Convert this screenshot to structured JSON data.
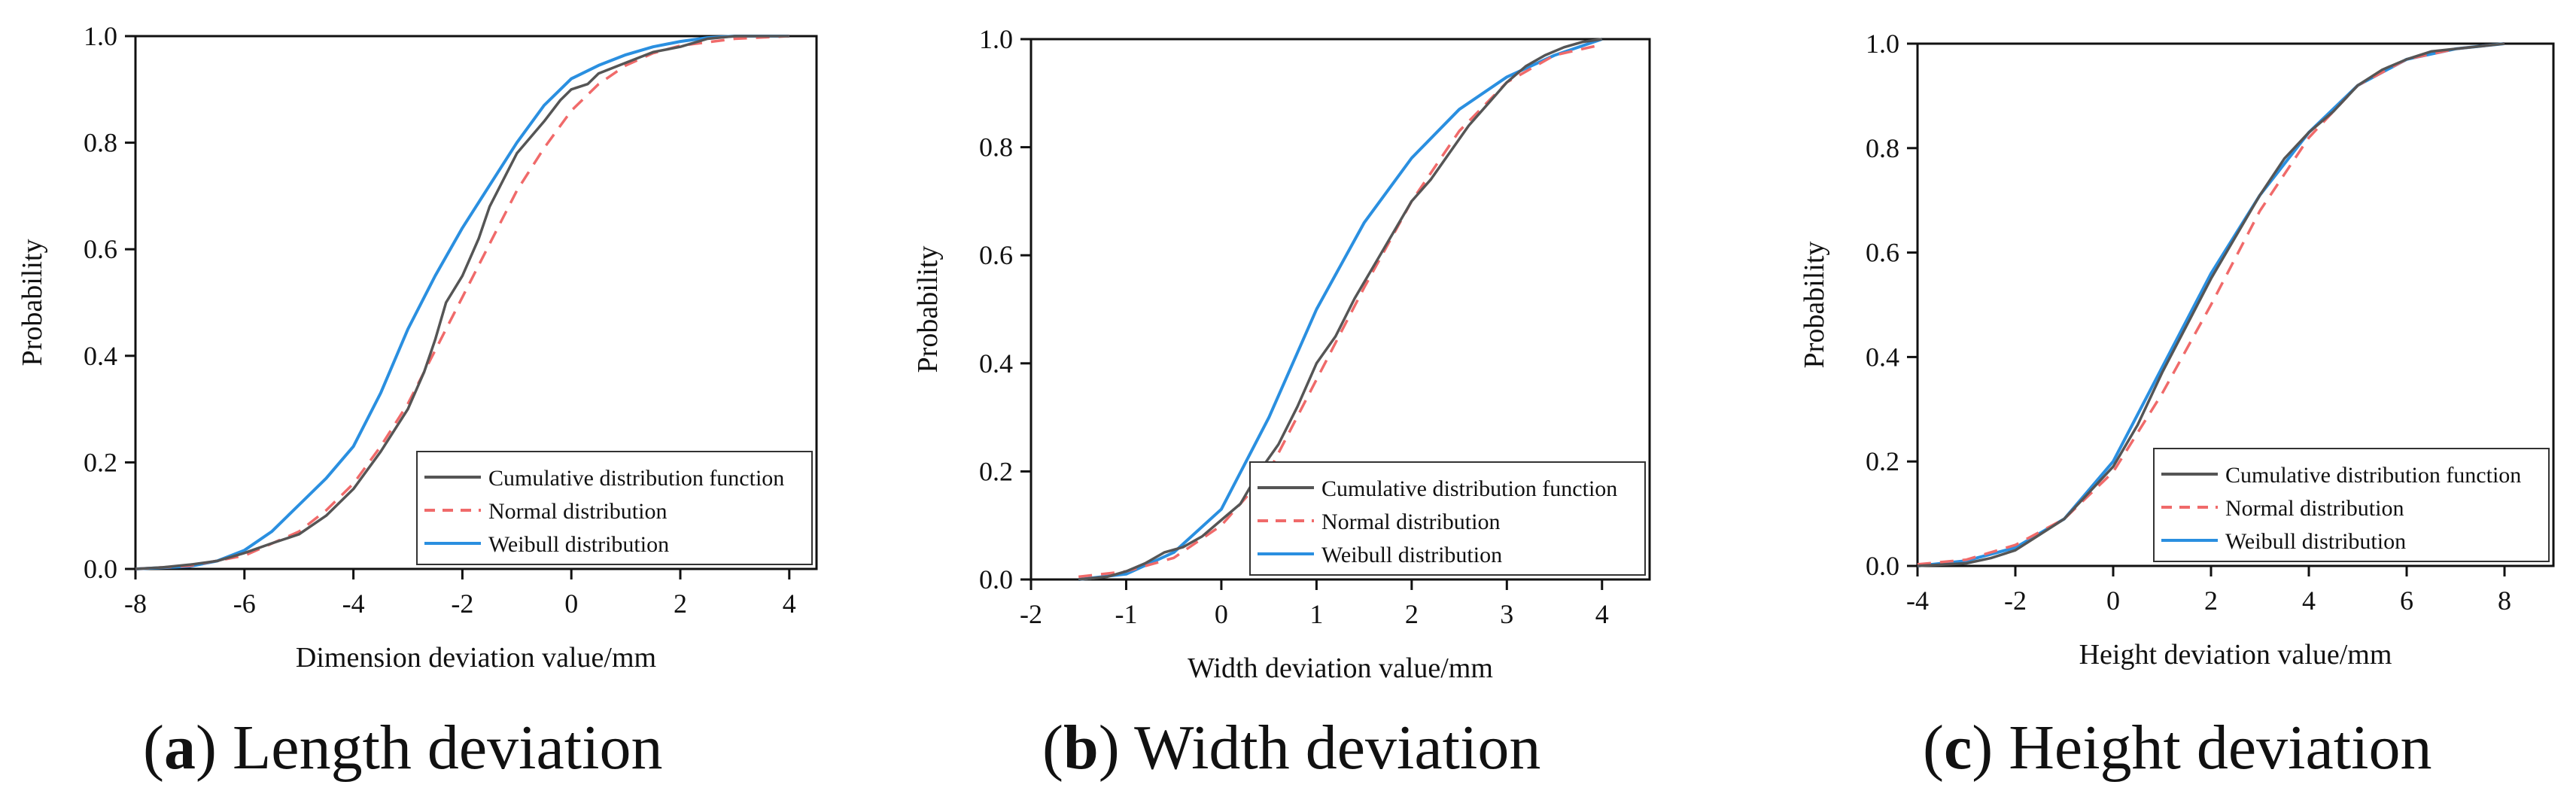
{
  "colors": {
    "cdf": "#555555",
    "normal": "#f06a6a",
    "weibull": "#2a8fe0",
    "axis": "#111111"
  },
  "chart_data": [
    {
      "id": "a",
      "type": "line",
      "xlabel": "Dimension deviation value/mm",
      "ylabel": "Probability",
      "xlim": [
        -8,
        4.5
      ],
      "ylim": [
        0,
        1
      ],
      "xticks": [
        -8,
        -6,
        -4,
        -2,
        0,
        2,
        4
      ],
      "yticks": [
        0.0,
        0.2,
        0.4,
        0.6,
        0.8,
        1.0
      ],
      "caption_letter": "a",
      "caption_text": " Length deviation",
      "legend_position": "lower-right",
      "series": [
        {
          "name": "Cumulative distribution function",
          "key": "cdf",
          "dash": false,
          "points": [
            [
              -8,
              0
            ],
            [
              -7.5,
              0.003
            ],
            [
              -7,
              0.008
            ],
            [
              -6.5,
              0.015
            ],
            [
              -6,
              0.03
            ],
            [
              -5.5,
              0.048
            ],
            [
              -5,
              0.065
            ],
            [
              -4.5,
              0.1
            ],
            [
              -4,
              0.15
            ],
            [
              -3.5,
              0.22
            ],
            [
              -3,
              0.3
            ],
            [
              -2.7,
              0.37
            ],
            [
              -2.5,
              0.43
            ],
            [
              -2.3,
              0.5
            ],
            [
              -2,
              0.55
            ],
            [
              -1.7,
              0.62
            ],
            [
              -1.5,
              0.68
            ],
            [
              -1.2,
              0.74
            ],
            [
              -1,
              0.78
            ],
            [
              -0.5,
              0.84
            ],
            [
              -0.2,
              0.88
            ],
            [
              0,
              0.9
            ],
            [
              0.3,
              0.91
            ],
            [
              0.5,
              0.93
            ],
            [
              1,
              0.95
            ],
            [
              1.5,
              0.97
            ],
            [
              2,
              0.98
            ],
            [
              2.5,
              0.995
            ],
            [
              3,
              1.0
            ],
            [
              4,
              1.0
            ]
          ]
        },
        {
          "name": "Normal distribution",
          "key": "normal",
          "dash": true,
          "points": [
            [
              -8,
              0.0
            ],
            [
              -7,
              0.006
            ],
            [
              -6,
              0.025
            ],
            [
              -5,
              0.07
            ],
            [
              -4.5,
              0.11
            ],
            [
              -4,
              0.16
            ],
            [
              -3.5,
              0.23
            ],
            [
              -3,
              0.31
            ],
            [
              -2.5,
              0.41
            ],
            [
              -2,
              0.51
            ],
            [
              -1.5,
              0.61
            ],
            [
              -1,
              0.71
            ],
            [
              -0.5,
              0.79
            ],
            [
              0,
              0.86
            ],
            [
              0.5,
              0.91
            ],
            [
              1,
              0.945
            ],
            [
              1.5,
              0.968
            ],
            [
              2,
              0.982
            ],
            [
              3,
              0.995
            ],
            [
              4,
              1.0
            ]
          ]
        },
        {
          "name": "Weibull distribution",
          "key": "weibull",
          "dash": false,
          "points": [
            [
              -8,
              0.0
            ],
            [
              -7,
              0.005
            ],
            [
              -6.5,
              0.015
            ],
            [
              -6,
              0.035
            ],
            [
              -5.5,
              0.07
            ],
            [
              -5,
              0.12
            ],
            [
              -4.5,
              0.17
            ],
            [
              -4,
              0.23
            ],
            [
              -3.5,
              0.33
            ],
            [
              -3,
              0.45
            ],
            [
              -2.5,
              0.55
            ],
            [
              -2,
              0.64
            ],
            [
              -1.5,
              0.72
            ],
            [
              -1,
              0.8
            ],
            [
              -0.5,
              0.87
            ],
            [
              0,
              0.92
            ],
            [
              0.5,
              0.945
            ],
            [
              1,
              0.965
            ],
            [
              1.5,
              0.98
            ],
            [
              2,
              0.99
            ],
            [
              2.5,
              0.997
            ],
            [
              3,
              1.0
            ],
            [
              4,
              1.0
            ]
          ]
        }
      ]
    },
    {
      "id": "b",
      "type": "line",
      "xlabel": "Width deviation value/mm",
      "ylabel": "Probability",
      "xlim": [
        -2,
        4.5
      ],
      "ylim": [
        0,
        1
      ],
      "xticks": [
        -2,
        -1,
        0,
        1,
        2,
        3,
        4
      ],
      "yticks": [
        0.0,
        0.2,
        0.4,
        0.6,
        0.8,
        1.0
      ],
      "caption_letter": "b",
      "caption_text": " Width deviation",
      "legend_position": "lower-right",
      "series": [
        {
          "name": "Cumulative distribution function",
          "key": "cdf",
          "dash": false,
          "points": [
            [
              -1.5,
              0
            ],
            [
              -1.2,
              0.005
            ],
            [
              -1,
              0.015
            ],
            [
              -0.8,
              0.03
            ],
            [
              -0.6,
              0.05
            ],
            [
              -0.4,
              0.06
            ],
            [
              -0.2,
              0.08
            ],
            [
              0,
              0.11
            ],
            [
              0.2,
              0.14
            ],
            [
              0.4,
              0.2
            ],
            [
              0.6,
              0.25
            ],
            [
              0.8,
              0.32
            ],
            [
              1,
              0.4
            ],
            [
              1.2,
              0.45
            ],
            [
              1.4,
              0.52
            ],
            [
              1.6,
              0.58
            ],
            [
              1.8,
              0.64
            ],
            [
              2,
              0.7
            ],
            [
              2.2,
              0.74
            ],
            [
              2.4,
              0.79
            ],
            [
              2.6,
              0.84
            ],
            [
              2.8,
              0.88
            ],
            [
              3,
              0.92
            ],
            [
              3.2,
              0.95
            ],
            [
              3.4,
              0.97
            ],
            [
              3.6,
              0.985
            ],
            [
              3.8,
              0.995
            ],
            [
              4,
              1.0
            ]
          ]
        },
        {
          "name": "Normal distribution",
          "key": "normal",
          "dash": true,
          "points": [
            [
              -1.5,
              0.005
            ],
            [
              -1,
              0.015
            ],
            [
              -0.5,
              0.04
            ],
            [
              0,
              0.1
            ],
            [
              0.5,
              0.2
            ],
            [
              1,
              0.37
            ],
            [
              1.5,
              0.54
            ],
            [
              2,
              0.7
            ],
            [
              2.5,
              0.83
            ],
            [
              3,
              0.92
            ],
            [
              3.5,
              0.97
            ],
            [
              4,
              0.99
            ]
          ]
        },
        {
          "name": "Weibull distribution",
          "key": "weibull",
          "dash": false,
          "points": [
            [
              -1.5,
              0.0
            ],
            [
              -1,
              0.01
            ],
            [
              -0.5,
              0.05
            ],
            [
              0,
              0.13
            ],
            [
              0.5,
              0.3
            ],
            [
              1,
              0.5
            ],
            [
              1.5,
              0.66
            ],
            [
              2,
              0.78
            ],
            [
              2.5,
              0.87
            ],
            [
              3,
              0.93
            ],
            [
              3.5,
              0.97
            ],
            [
              4,
              1.0
            ]
          ]
        }
      ]
    },
    {
      "id": "c",
      "type": "line",
      "xlabel": "Height deviation value/mm",
      "ylabel": "Probability",
      "xlim": [
        -4,
        9
      ],
      "ylim": [
        0,
        1
      ],
      "xticks": [
        -4,
        -2,
        0,
        2,
        4,
        6,
        8
      ],
      "yticks": [
        0.0,
        0.2,
        0.4,
        0.6,
        0.8,
        1.0
      ],
      "caption_letter": "c",
      "caption_text": " Height deviation",
      "legend_position": "lower-right",
      "series": [
        {
          "name": "Cumulative distribution function",
          "key": "cdf",
          "dash": false,
          "points": [
            [
              -4,
              0
            ],
            [
              -3,
              0.005
            ],
            [
              -2.5,
              0.015
            ],
            [
              -2,
              0.03
            ],
            [
              -1.5,
              0.06
            ],
            [
              -1,
              0.09
            ],
            [
              -0.5,
              0.14
            ],
            [
              0,
              0.19
            ],
            [
              0.5,
              0.27
            ],
            [
              1,
              0.37
            ],
            [
              1.5,
              0.46
            ],
            [
              2,
              0.55
            ],
            [
              2.5,
              0.63
            ],
            [
              3,
              0.71
            ],
            [
              3.5,
              0.78
            ],
            [
              4,
              0.83
            ],
            [
              4.5,
              0.87
            ],
            [
              5,
              0.92
            ],
            [
              5.5,
              0.95
            ],
            [
              6,
              0.97
            ],
            [
              6.5,
              0.985
            ],
            [
              7,
              0.99
            ],
            [
              7.5,
              0.995
            ],
            [
              8,
              1.0
            ]
          ]
        },
        {
          "name": "Normal distribution",
          "key": "normal",
          "dash": true,
          "points": [
            [
              -4,
              0.003
            ],
            [
              -3,
              0.012
            ],
            [
              -2,
              0.04
            ],
            [
              -1,
              0.09
            ],
            [
              0,
              0.18
            ],
            [
              1,
              0.33
            ],
            [
              2,
              0.5
            ],
            [
              3,
              0.68
            ],
            [
              4,
              0.82
            ],
            [
              5,
              0.92
            ],
            [
              6,
              0.97
            ],
            [
              7,
              0.99
            ],
            [
              8,
              1.0
            ]
          ]
        },
        {
          "name": "Weibull distribution",
          "key": "weibull",
          "dash": false,
          "points": [
            [
              -4,
              0.0
            ],
            [
              -3,
              0.01
            ],
            [
              -2,
              0.035
            ],
            [
              -1,
              0.09
            ],
            [
              0,
              0.2
            ],
            [
              1,
              0.38
            ],
            [
              2,
              0.56
            ],
            [
              3,
              0.71
            ],
            [
              4,
              0.83
            ],
            [
              5,
              0.92
            ],
            [
              6,
              0.97
            ],
            [
              7,
              0.99
            ],
            [
              8,
              1.0
            ]
          ]
        }
      ]
    }
  ]
}
